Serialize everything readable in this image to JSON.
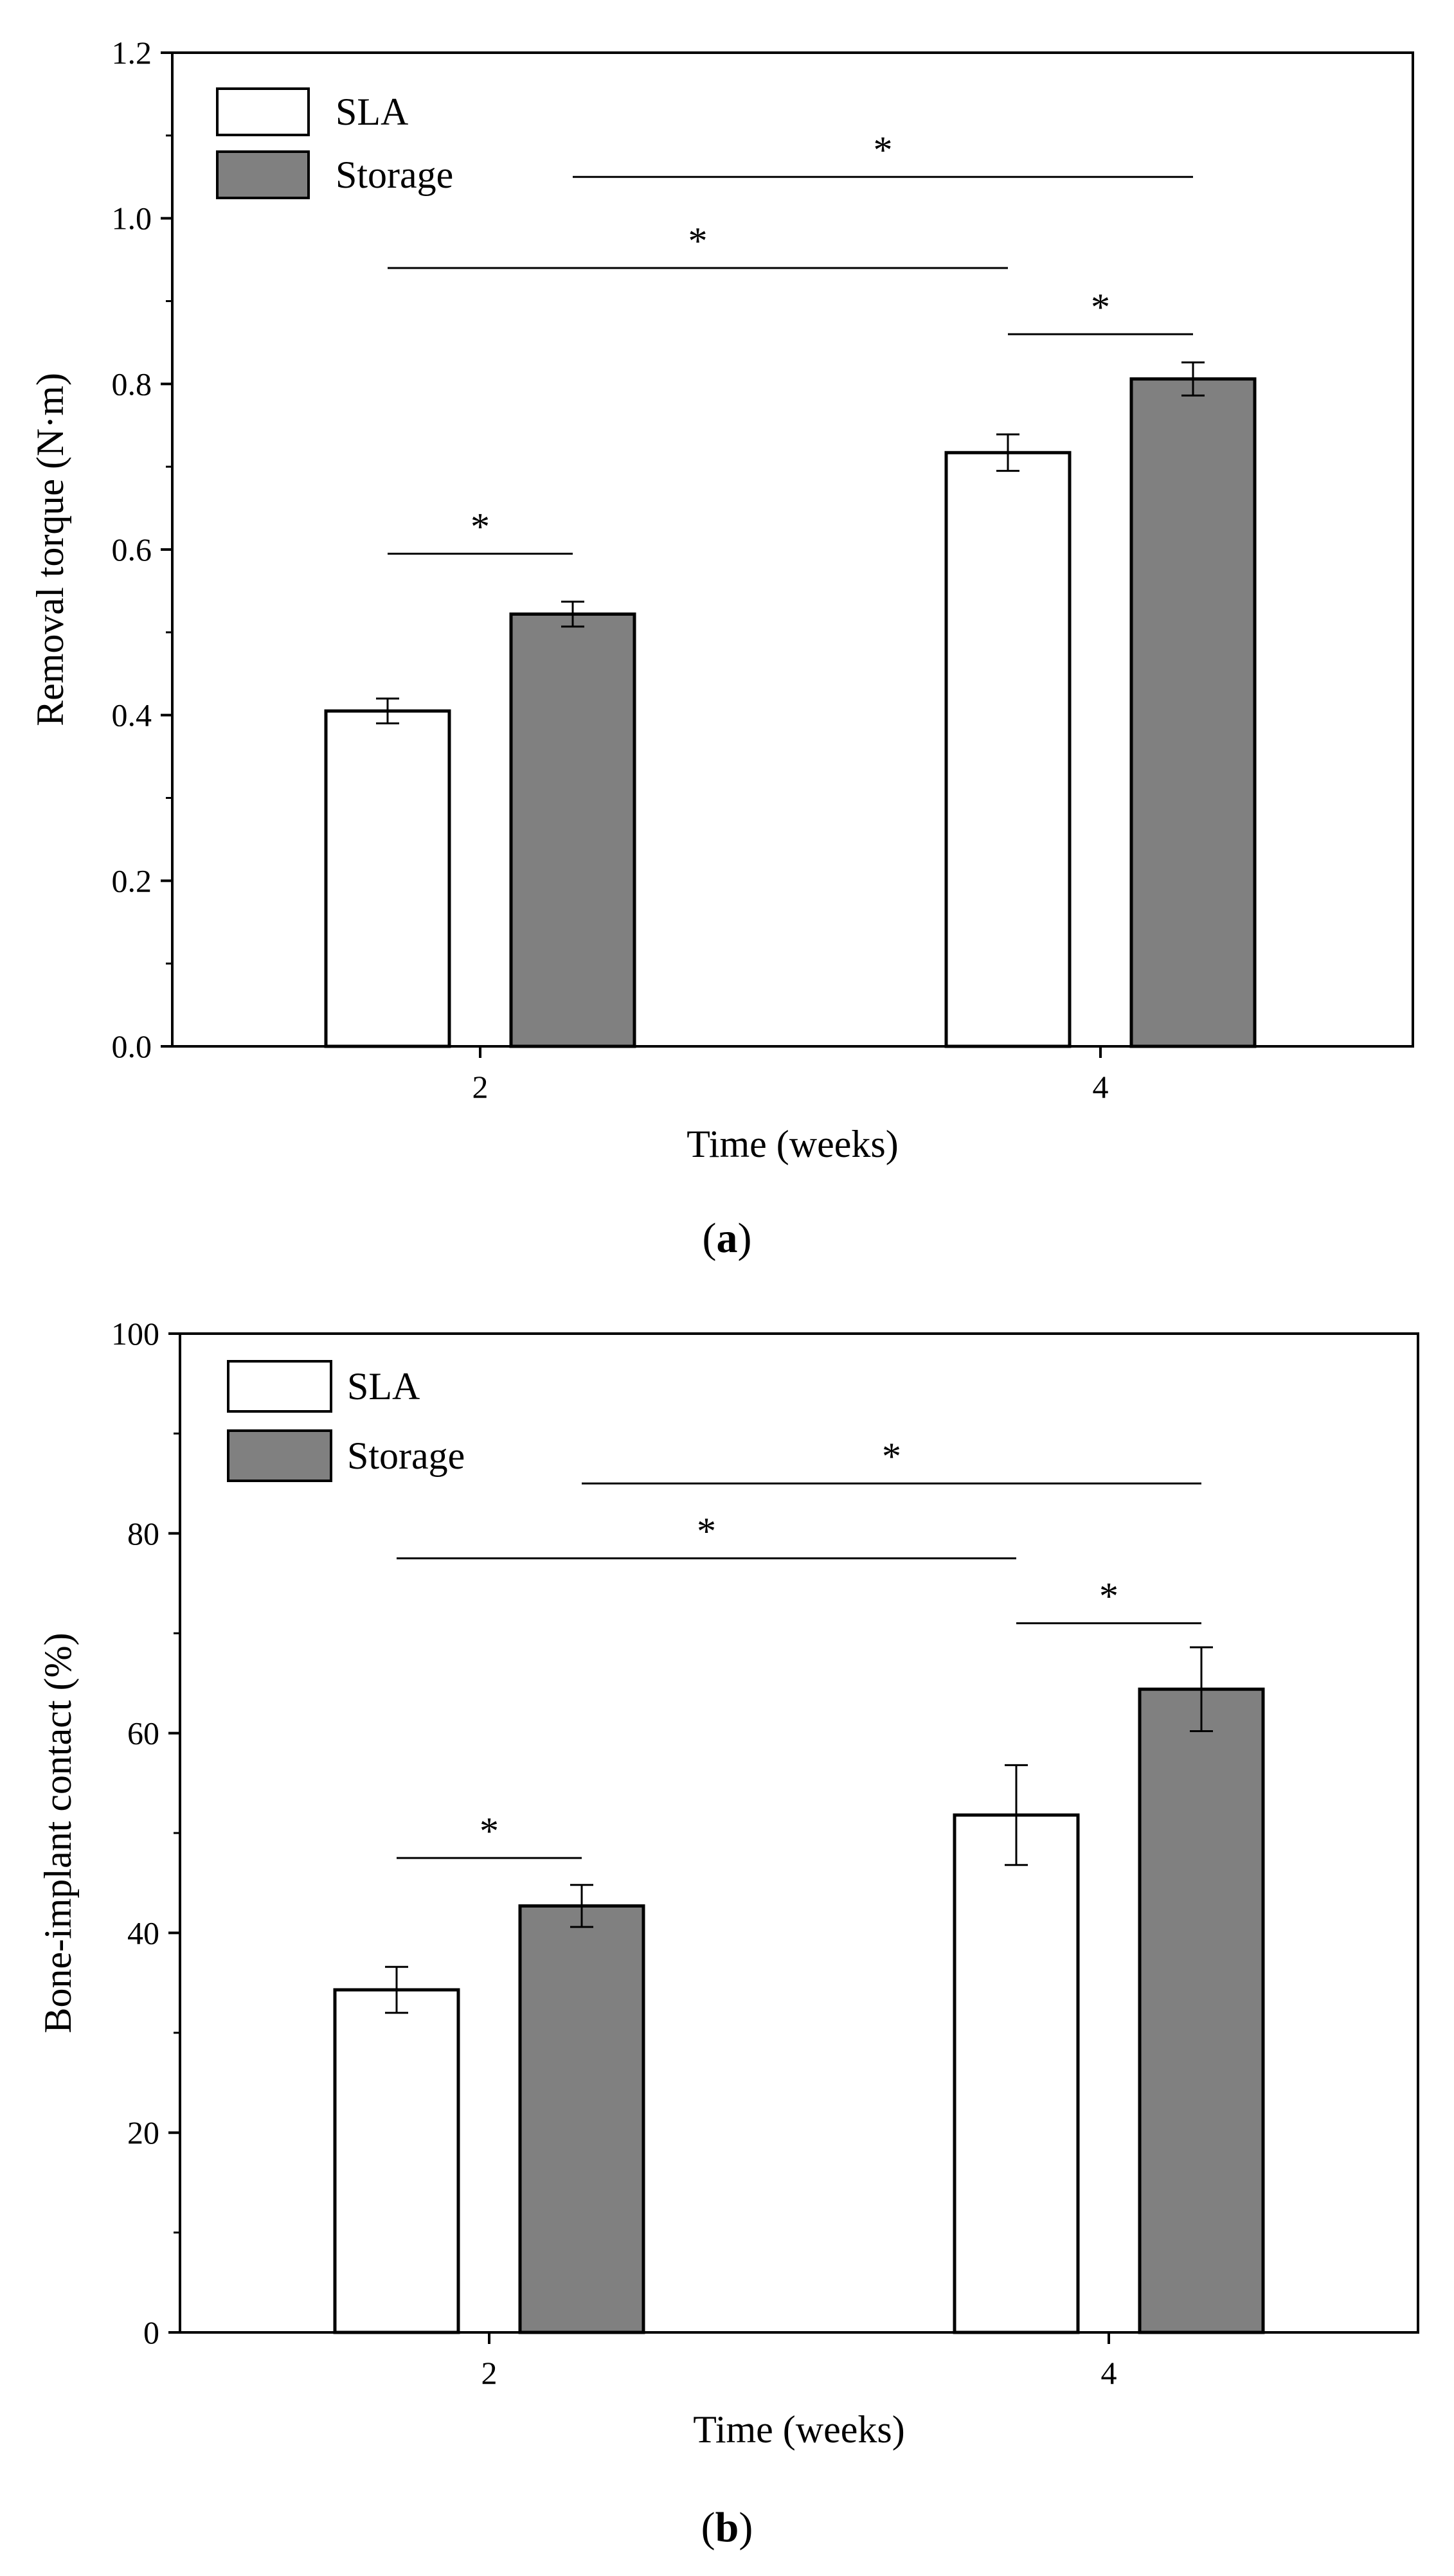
{
  "chart_data": [
    {
      "type": "bar",
      "panel_label": "a",
      "categories": [
        "2",
        "4"
      ],
      "xlabel": "Time (weeks)",
      "ylabel": "Removal torque (N·m)",
      "ylim": [
        0,
        1.2
      ],
      "yticks": [
        "0.0",
        "0.2",
        "0.4",
        "0.6",
        "0.8",
        "1.0",
        "1.2"
      ],
      "series": [
        {
          "name": "SLA",
          "values": [
            0.405,
            0.717
          ],
          "errors": [
            0.015,
            0.022
          ]
        },
        {
          "name": "Storage",
          "values": [
            0.522,
            0.806
          ],
          "errors": [
            0.015,
            0.02
          ]
        }
      ],
      "significance": [
        {
          "from": [
            0,
            0
          ],
          "to": [
            0,
            1
          ],
          "y": 0.595,
          "label": "*"
        },
        {
          "from": [
            0,
            0
          ],
          "to": [
            1,
            0
          ],
          "y": 0.94,
          "label": "*"
        },
        {
          "from": [
            0,
            1
          ],
          "to": [
            1,
            1
          ],
          "y": 1.05,
          "label": "*"
        },
        {
          "from": [
            1,
            0
          ],
          "to": [
            1,
            1
          ],
          "y": 0.86,
          "label": "*"
        }
      ],
      "legend_position": "top-left",
      "colors": {
        "SLA": "#ffffff",
        "Storage": "#808080"
      }
    },
    {
      "type": "bar",
      "panel_label": "b",
      "categories": [
        "2",
        "4"
      ],
      "xlabel": "Time (weeks)",
      "ylabel": "Bone-implant contact (%)",
      "ylim": [
        0,
        100
      ],
      "yticks": [
        "0",
        "20",
        "40",
        "60",
        "80",
        "100"
      ],
      "series": [
        {
          "name": "SLA",
          "values": [
            34.3,
            51.8
          ],
          "errors": [
            2.3,
            5.0
          ]
        },
        {
          "name": "Storage",
          "values": [
            42.7,
            64.4
          ],
          "errors": [
            2.1,
            4.2
          ]
        }
      ],
      "significance": [
        {
          "from": [
            0,
            0
          ],
          "to": [
            0,
            1
          ],
          "y": 47.5,
          "label": "*"
        },
        {
          "from": [
            0,
            0
          ],
          "to": [
            1,
            0
          ],
          "y": 77.5,
          "label": "*"
        },
        {
          "from": [
            0,
            1
          ],
          "to": [
            1,
            1
          ],
          "y": 85.0,
          "label": "*"
        },
        {
          "from": [
            1,
            0
          ],
          "to": [
            1,
            1
          ],
          "y": 71.0,
          "label": "*"
        }
      ],
      "legend_position": "top-left",
      "colors": {
        "SLA": "#ffffff",
        "Storage": "#808080"
      }
    }
  ]
}
